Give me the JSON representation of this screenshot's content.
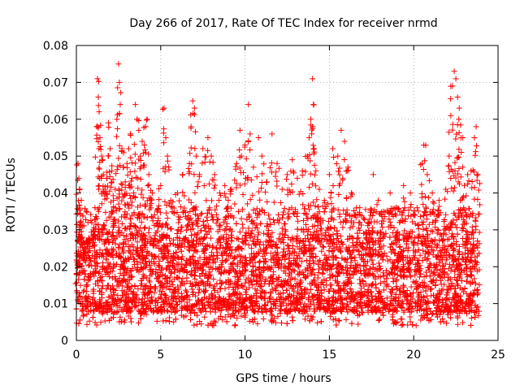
{
  "chart_data": {
    "type": "scatter",
    "title": "Day 266 of 2017, Rate Of TEC Index for receiver nrmd",
    "xlabel": "GPS time / hours",
    "ylabel": "ROTI / TECUs",
    "xlim": [
      0,
      25
    ],
    "ylim": [
      0,
      0.08
    ],
    "x_ticks": [
      "0",
      "5",
      "10",
      "15",
      "20",
      "25"
    ],
    "y_ticks": [
      "0",
      "0.01",
      "0.02",
      "0.03",
      "0.04",
      "0.05",
      "0.06",
      "0.07",
      "0.08"
    ],
    "x_tick_values": [
      0,
      5,
      10,
      15,
      20,
      25
    ],
    "y_tick_values": [
      0,
      0.01,
      0.02,
      0.03,
      0.04,
      0.05,
      0.06,
      0.07,
      0.08
    ],
    "grid": true,
    "marker": "+",
    "color": "#ff0000",
    "series": [
      {
        "points": [
          [
            0.05,
            0.013
          ],
          [
            0.1,
            0.048
          ],
          [
            0.15,
            0.044
          ],
          [
            0.2,
            0.041
          ],
          [
            0.25,
            0.032
          ],
          [
            0.3,
            0.028
          ],
          [
            0.4,
            0.022
          ],
          [
            0.5,
            0.018
          ],
          [
            0.7,
            0.024
          ],
          [
            0.8,
            0.027
          ],
          [
            1.0,
            0.03
          ],
          [
            1.1,
            0.036
          ],
          [
            1.2,
            0.058
          ],
          [
            1.25,
            0.071
          ],
          [
            1.3,
            0.066
          ],
          [
            1.35,
            0.062
          ],
          [
            1.4,
            0.055
          ],
          [
            1.5,
            0.05
          ],
          [
            1.6,
            0.045
          ],
          [
            1.7,
            0.041
          ],
          [
            1.8,
            0.044
          ],
          [
            1.9,
            0.059
          ],
          [
            2.0,
            0.052
          ],
          [
            2.1,
            0.046
          ],
          [
            2.2,
            0.038
          ],
          [
            2.3,
            0.041
          ],
          [
            2.4,
            0.06
          ],
          [
            2.5,
            0.075
          ],
          [
            2.55,
            0.07
          ],
          [
            2.6,
            0.064
          ],
          [
            2.7,
            0.052
          ],
          [
            2.8,
            0.047
          ],
          [
            2.9,
            0.043
          ],
          [
            3.0,
            0.048
          ],
          [
            3.1,
            0.052
          ],
          [
            3.2,
            0.056
          ],
          [
            3.3,
            0.044
          ],
          [
            3.4,
            0.04
          ],
          [
            3.5,
            0.064
          ],
          [
            3.6,
            0.06
          ],
          [
            3.7,
            0.057
          ],
          [
            3.8,
            0.05
          ],
          [
            3.9,
            0.054
          ],
          [
            4.0,
            0.047
          ],
          [
            4.1,
            0.058
          ],
          [
            4.2,
            0.06
          ],
          [
            4.3,
            0.045
          ],
          [
            4.5,
            0.04
          ],
          [
            4.8,
            0.035
          ],
          [
            5.0,
            0.042
          ],
          [
            5.2,
            0.063
          ],
          [
            5.3,
            0.055
          ],
          [
            5.4,
            0.05
          ],
          [
            5.6,
            0.038
          ],
          [
            6.0,
            0.04
          ],
          [
            6.3,
            0.045
          ],
          [
            6.7,
            0.048
          ],
          [
            6.8,
            0.058
          ],
          [
            6.9,
            0.065
          ],
          [
            7.0,
            0.063
          ],
          [
            7.1,
            0.05
          ],
          [
            7.3,
            0.045
          ],
          [
            7.5,
            0.052
          ],
          [
            7.8,
            0.055
          ],
          [
            8.0,
            0.05
          ],
          [
            8.2,
            0.045
          ],
          [
            8.5,
            0.04
          ],
          [
            8.8,
            0.042
          ],
          [
            9.0,
            0.038
          ],
          [
            9.2,
            0.041
          ],
          [
            9.5,
            0.048
          ],
          [
            9.7,
            0.057
          ],
          [
            10.0,
            0.053
          ],
          [
            10.2,
            0.064
          ],
          [
            10.3,
            0.056
          ],
          [
            10.5,
            0.047
          ],
          [
            10.8,
            0.055
          ],
          [
            11.0,
            0.05
          ],
          [
            11.3,
            0.043
          ],
          [
            11.6,
            0.056
          ],
          [
            11.9,
            0.048
          ],
          [
            12.2,
            0.041
          ],
          [
            12.5,
            0.045
          ],
          [
            12.8,
            0.049
          ],
          [
            13.1,
            0.044
          ],
          [
            13.4,
            0.046
          ],
          [
            13.7,
            0.05
          ],
          [
            13.8,
            0.055
          ],
          [
            13.9,
            0.06
          ],
          [
            14.0,
            0.071
          ],
          [
            14.05,
            0.064
          ],
          [
            14.1,
            0.052
          ],
          [
            14.2,
            0.046
          ],
          [
            14.4,
            0.041
          ],
          [
            14.7,
            0.038
          ],
          [
            15.0,
            0.045
          ],
          [
            15.2,
            0.052
          ],
          [
            15.5,
            0.05
          ],
          [
            15.7,
            0.057
          ],
          [
            15.9,
            0.054
          ],
          [
            16.1,
            0.047
          ],
          [
            16.3,
            0.04
          ],
          [
            16.8,
            0.036
          ],
          [
            17.3,
            0.032
          ],
          [
            17.6,
            0.045
          ],
          [
            17.9,
            0.038
          ],
          [
            18.2,
            0.035
          ],
          [
            18.6,
            0.04
          ],
          [
            19.0,
            0.036
          ],
          [
            19.4,
            0.042
          ],
          [
            19.8,
            0.04
          ],
          [
            20.2,
            0.036
          ],
          [
            20.5,
            0.048
          ],
          [
            20.6,
            0.053
          ],
          [
            20.8,
            0.045
          ],
          [
            21.1,
            0.04
          ],
          [
            21.5,
            0.038
          ],
          [
            21.9,
            0.041
          ],
          [
            22.1,
            0.05
          ],
          [
            22.2,
            0.061
          ],
          [
            22.3,
            0.069
          ],
          [
            22.4,
            0.073
          ],
          [
            22.5,
            0.071
          ],
          [
            22.6,
            0.066
          ],
          [
            22.7,
            0.063
          ],
          [
            22.8,
            0.055
          ],
          [
            22.9,
            0.047
          ],
          [
            23.0,
            0.042
          ],
          [
            23.2,
            0.045
          ],
          [
            23.4,
            0.046
          ],
          [
            23.6,
            0.055
          ],
          [
            23.7,
            0.058
          ],
          [
            23.8,
            0.045
          ]
        ]
      }
    ],
    "baseline_band": {
      "low": 0.004,
      "high": 0.028
    }
  }
}
